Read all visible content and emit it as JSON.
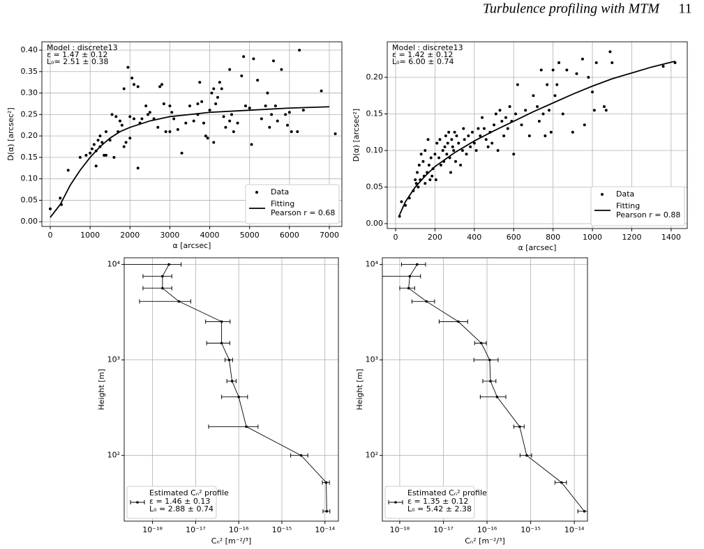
{
  "header": {
    "title": "Turbulence profiling with MTM",
    "page": "11"
  },
  "chart_data": [
    {
      "type": "scatter",
      "annotation": [
        "Model : discrete13",
        "ε  =   1.47 ±  0.12",
        "L₀=   2.51 ±  0.38"
      ],
      "xlabel": "α [arcsec]",
      "ylabel": "D(α) [arcsec²]",
      "xlim": [
        -210,
        7315
      ],
      "ylim": [
        -0.011,
        0.4195
      ],
      "xticks": [
        0,
        1000,
        2000,
        3000,
        4000,
        5000,
        6000,
        7000
      ],
      "yticks": [
        {
          "value": 0,
          "label": "0.00"
        },
        {
          "value": 0.05,
          "label": "0.05"
        },
        {
          "value": 0.1,
          "label": "0.10"
        },
        {
          "value": 0.15,
          "label": "0.15"
        },
        {
          "value": 0.2,
          "label": "0.20"
        },
        {
          "value": 0.25,
          "label": "0.25"
        },
        {
          "value": 0.3,
          "label": "0.30"
        },
        {
          "value": 0.35,
          "label": "0.35"
        },
        {
          "value": 0.4,
          "label": "0.40"
        }
      ],
      "grid": true,
      "legend": "lower right",
      "series": [
        {
          "name": "Data",
          "color": "#000000",
          "x": [
            0,
            250,
            280,
            450,
            750,
            900,
            1000,
            1050,
            1100,
            1150,
            1150,
            1200,
            1250,
            1250,
            1300,
            1350,
            1400,
            1400,
            1500,
            1550,
            1600,
            1650,
            1700,
            1750,
            1800,
            1850,
            1850,
            1900,
            1950,
            2000,
            2000,
            2050,
            2100,
            2100,
            2200,
            2200,
            2250,
            2300,
            2400,
            2450,
            2500,
            2600,
            2700,
            2750,
            2800,
            2850,
            2900,
            3000,
            3000,
            3050,
            3100,
            3200,
            3300,
            3400,
            3500,
            3600,
            3700,
            3700,
            3750,
            3800,
            3850,
            3900,
            3950,
            4000,
            4050,
            4100,
            4100,
            4150,
            4200,
            4250,
            4300,
            4350,
            4400,
            4500,
            4500,
            4550,
            4600,
            4700,
            4800,
            4850,
            4900,
            5000,
            5050,
            5100,
            5200,
            5300,
            5400,
            5450,
            5500,
            5550,
            5600,
            5650,
            5700,
            5800,
            5900,
            5950,
            6000,
            6050,
            6200,
            6250,
            6350,
            6800,
            7150
          ],
          "y": [
            0.03,
            0.055,
            0.04,
            0.12,
            0.15,
            0.155,
            0.16,
            0.17,
            0.18,
            0.165,
            0.13,
            0.19,
            0.2,
            0.175,
            0.185,
            0.155,
            0.21,
            0.155,
            0.19,
            0.25,
            0.15,
            0.245,
            0.21,
            0.235,
            0.225,
            0.31,
            0.175,
            0.185,
            0.36,
            0.195,
            0.245,
            0.335,
            0.32,
            0.24,
            0.315,
            0.125,
            0.23,
            0.24,
            0.27,
            0.25,
            0.255,
            0.24,
            0.22,
            0.315,
            0.32,
            0.275,
            0.21,
            0.27,
            0.21,
            0.255,
            0.24,
            0.215,
            0.16,
            0.23,
            0.27,
            0.235,
            0.25,
            0.275,
            0.325,
            0.28,
            0.23,
            0.2,
            0.195,
            0.26,
            0.3,
            0.31,
            0.185,
            0.275,
            0.29,
            0.325,
            0.31,
            0.245,
            0.22,
            0.355,
            0.235,
            0.25,
            0.21,
            0.23,
            0.34,
            0.385,
            0.27,
            0.265,
            0.18,
            0.38,
            0.33,
            0.24,
            0.27,
            0.3,
            0.22,
            0.25,
            0.375,
            0.27,
            0.235,
            0.355,
            0.25,
            0.225,
            0.255,
            0.21,
            0.21,
            0.4,
            0.26,
            0.305,
            0.205
          ]
        },
        {
          "name": "Fitting",
          "note": "Pearson r = 0.68",
          "color": "#000000",
          "x": [
            0,
            250,
            500,
            750,
            1000,
            1250,
            1500,
            1750,
            2000,
            2500,
            3000,
            3500,
            4000,
            5000,
            6000,
            7000
          ],
          "y": [
            0.01,
            0.04,
            0.085,
            0.12,
            0.15,
            0.175,
            0.195,
            0.21,
            0.22,
            0.235,
            0.245,
            0.25,
            0.255,
            0.26,
            0.265,
            0.268
          ]
        }
      ]
    },
    {
      "type": "scatter",
      "annotation": [
        "Model : discrete13",
        "ε  =   1.42 ±  0.12",
        "L₀=   6.00 ±  0.74"
      ],
      "xlabel": "α [arcsec]",
      "ylabel": "D(α) [arcsec²]",
      "xlim": [
        -42.5,
        1482
      ],
      "ylim": [
        -0.0067,
        0.2486
      ],
      "xticks": [
        0,
        200,
        400,
        600,
        800,
        1000,
        1200,
        1400
      ],
      "yticks": [
        {
          "value": 0,
          "label": "0.00"
        },
        {
          "value": 0.05,
          "label": "0.05"
        },
        {
          "value": 0.1,
          "label": "0.10"
        },
        {
          "value": 0.15,
          "label": "0.15"
        },
        {
          "value": 0.2,
          "label": "0.20"
        }
      ],
      "grid": true,
      "legend": "lower right",
      "series": [
        {
          "name": "Data",
          "color": "#000000",
          "x": [
            20,
            30,
            50,
            70,
            90,
            100,
            105,
            110,
            115,
            120,
            125,
            130,
            140,
            145,
            150,
            150,
            160,
            165,
            170,
            175,
            180,
            185,
            190,
            200,
            205,
            210,
            220,
            225,
            230,
            240,
            245,
            250,
            255,
            260,
            265,
            270,
            275,
            280,
            285,
            290,
            295,
            300,
            305,
            310,
            320,
            330,
            340,
            345,
            350,
            360,
            370,
            380,
            390,
            400,
            410,
            420,
            430,
            440,
            450,
            460,
            470,
            480,
            490,
            500,
            510,
            520,
            530,
            540,
            550,
            560,
            570,
            580,
            590,
            600,
            610,
            620,
            640,
            660,
            680,
            700,
            720,
            730,
            740,
            750,
            760,
            770,
            780,
            790,
            800,
            810,
            820,
            830,
            850,
            870,
            900,
            920,
            950,
            960,
            980,
            1000,
            1010,
            1020,
            1060,
            1070,
            1090,
            1100,
            1360,
            1420
          ],
          "y": [
            0.01,
            0.03,
            0.025,
            0.035,
            0.045,
            0.06,
            0.055,
            0.07,
            0.05,
            0.08,
            0.06,
            0.095,
            0.085,
            0.065,
            0.1,
            0.055,
            0.07,
            0.115,
            0.08,
            0.06,
            0.09,
            0.065,
            0.075,
            0.095,
            0.06,
            0.11,
            0.09,
            0.115,
            0.08,
            0.1,
            0.085,
            0.105,
            0.12,
            0.095,
            0.11,
            0.125,
            0.09,
            0.07,
            0.115,
            0.105,
            0.1,
            0.125,
            0.085,
            0.12,
            0.11,
            0.08,
            0.1,
            0.13,
            0.115,
            0.095,
            0.12,
            0.105,
            0.125,
            0.11,
            0.1,
            0.13,
            0.12,
            0.145,
            0.13,
            0.115,
            0.105,
            0.125,
            0.11,
            0.135,
            0.15,
            0.1,
            0.155,
            0.14,
            0.12,
            0.145,
            0.13,
            0.16,
            0.14,
            0.095,
            0.15,
            0.19,
            0.135,
            0.155,
            0.12,
            0.175,
            0.16,
            0.14,
            0.21,
            0.15,
            0.12,
            0.19,
            0.155,
            0.125,
            0.21,
            0.175,
            0.19,
            0.22,
            0.15,
            0.21,
            0.125,
            0.205,
            0.225,
            0.135,
            0.2,
            0.18,
            0.155,
            0.22,
            0.16,
            0.155,
            0.235,
            0.22,
            0.215,
            0.22
          ]
        },
        {
          "name": "Fitting",
          "note": "Pearson r = 0.88",
          "color": "#000000",
          "x": [
            20,
            50,
            100,
            150,
            200,
            300,
            400,
            500,
            600,
            700,
            800,
            900,
            1000,
            1100,
            1200,
            1300,
            1420
          ],
          "y": [
            0.012,
            0.03,
            0.05,
            0.065,
            0.078,
            0.097,
            0.113,
            0.127,
            0.14,
            0.153,
            0.165,
            0.177,
            0.188,
            0.198,
            0.206,
            0.214,
            0.222
          ]
        }
      ]
    },
    {
      "type": "errorbar",
      "xlabel": "Cₙ² [m⁻²/³]",
      "ylabel": "Height [m]",
      "xscale": "log",
      "yscale": "log",
      "xlim": [
        2.2e-19,
        2.05e-14
      ],
      "ylim": [
        20.5,
        11750
      ],
      "xticks": [
        {
          "value": 1e-18,
          "label": "10⁻¹⁸"
        },
        {
          "value": 1e-17,
          "label": "10⁻¹⁷"
        },
        {
          "value": 1e-16,
          "label": "10⁻¹⁶"
        },
        {
          "value": 1e-15,
          "label": "10⁻¹⁵"
        },
        {
          "value": 1e-14,
          "label": "10⁻¹⁴"
        }
      ],
      "yticks": [
        {
          "value": 100,
          "label": "10²"
        },
        {
          "value": 1000,
          "label": "10³"
        },
        {
          "value": 10000,
          "label": "10⁴"
        }
      ],
      "grid": true,
      "legend": "lower left",
      "series": [
        {
          "name": "Estimated Cₙ² profile",
          "legend_lines": [
            "ε  =  1.46 ± 0.13",
            "L₀ =  2.88 ± 0.74"
          ],
          "color": "#000000",
          "x": [
            2.4e-18,
            1.7e-18,
            1.7e-18,
            4.1e-18,
            4e-17,
            4e-17,
            6e-17,
            7e-17,
            1e-16,
            1.5e-16,
            2.8e-15,
            1.07e-14,
            1.1e-14
          ],
          "xerr": [
            2.2e-18,
            1.1e-18,
            1.1e-18,
            3.6e-18,
            2.3e-17,
            2.2e-17,
            1.2e-17,
            1.7e-17,
            6e-17,
            1.3e-16,
            1.2e-15,
            2e-15,
            2e-15
          ],
          "y": [
            10000,
            7520,
            5640,
            4100,
            2520,
            1500,
            1000,
            600,
            410,
            200,
            100,
            52,
            26
          ]
        }
      ]
    },
    {
      "type": "errorbar",
      "xlabel": "Cₙ² [m⁻²/³]",
      "ylabel": "Height [m]",
      "xscale": "log",
      "yscale": "log",
      "xlim": [
        4e-19,
        2e-14
      ],
      "ylim": [
        20.5,
        11750
      ],
      "xticks": [
        {
          "value": 1e-18,
          "label": "10⁻¹⁸"
        },
        {
          "value": 1e-17,
          "label": "10⁻¹⁷"
        },
        {
          "value": 1e-16,
          "label": "10⁻¹⁶"
        },
        {
          "value": 1e-15,
          "label": "10⁻¹⁵"
        },
        {
          "value": 1e-14,
          "label": "10⁻¹⁴"
        }
      ],
      "yticks": [
        {
          "value": 100,
          "label": "10²"
        },
        {
          "value": 1000,
          "label": "10³"
        },
        {
          "value": 10000,
          "label": "10⁴"
        }
      ],
      "grid": true,
      "legend": "lower left",
      "series": [
        {
          "name": "Estimated Cₙ² profile",
          "legend_lines": [
            "ε  =  1.35 ± 0.12",
            "L₀ =  5.42 ± 2.38"
          ],
          "color": "#000000",
          "x": [
            2.5e-18,
            1.7e-18,
            1.6e-18,
            4.1e-18,
            2.2e-17,
            7.4e-17,
            1.15e-16,
            1.2e-16,
            1.7e-16,
            5.6e-16,
            8.1e-16,
            5.1e-15,
            1.7e-14
          ],
          "xerr": [
            1.4e-18,
            1.3e-18,
            6e-19,
            2.2e-18,
            1.4e-17,
            2.2e-17,
            6.5e-17,
            4e-17,
            1e-16,
            1.5e-16,
            2.4e-16,
            1.5e-15,
            5e-15
          ],
          "y": [
            10000,
            7520,
            5640,
            4100,
            2520,
            1500,
            1000,
            600,
            410,
            200,
            100,
            52,
            26
          ]
        }
      ]
    }
  ]
}
